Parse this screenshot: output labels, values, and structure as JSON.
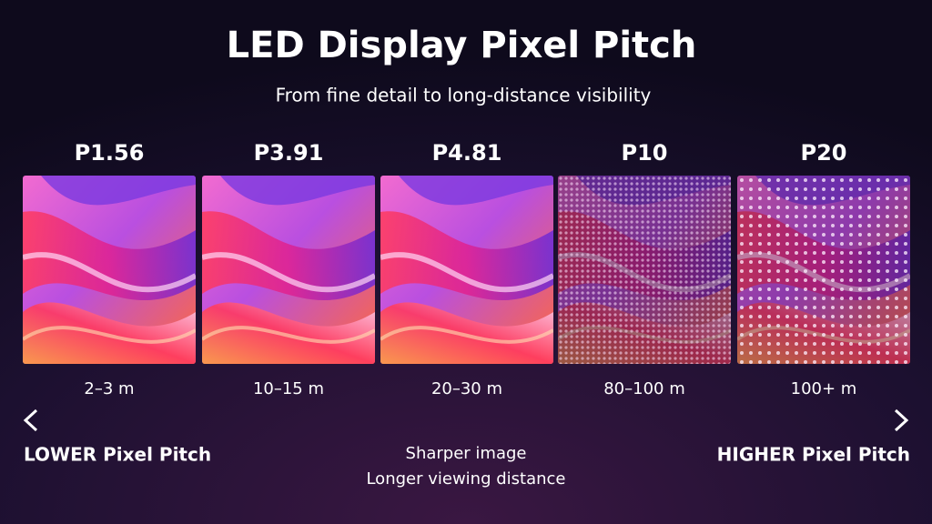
{
  "header": {
    "title": "LED Display Pixel Pitch",
    "subtitle": "From fine detail to long-distance visibility"
  },
  "panels": [
    {
      "label": "P1.56",
      "distance": "2–3 m"
    },
    {
      "label": "P3.91",
      "distance": "10–15 m"
    },
    {
      "label": "P4.81",
      "distance": "20–30 m"
    },
    {
      "label": "P10",
      "distance": "80–100 m"
    },
    {
      "label": "P20",
      "distance": "100+ m"
    }
  ],
  "scale": {
    "left": "LOWER Pixel Pitch",
    "right": "HIGHER Pixel Pitch",
    "notes": [
      "Sharper image",
      "Longer viewing distance"
    ]
  }
}
